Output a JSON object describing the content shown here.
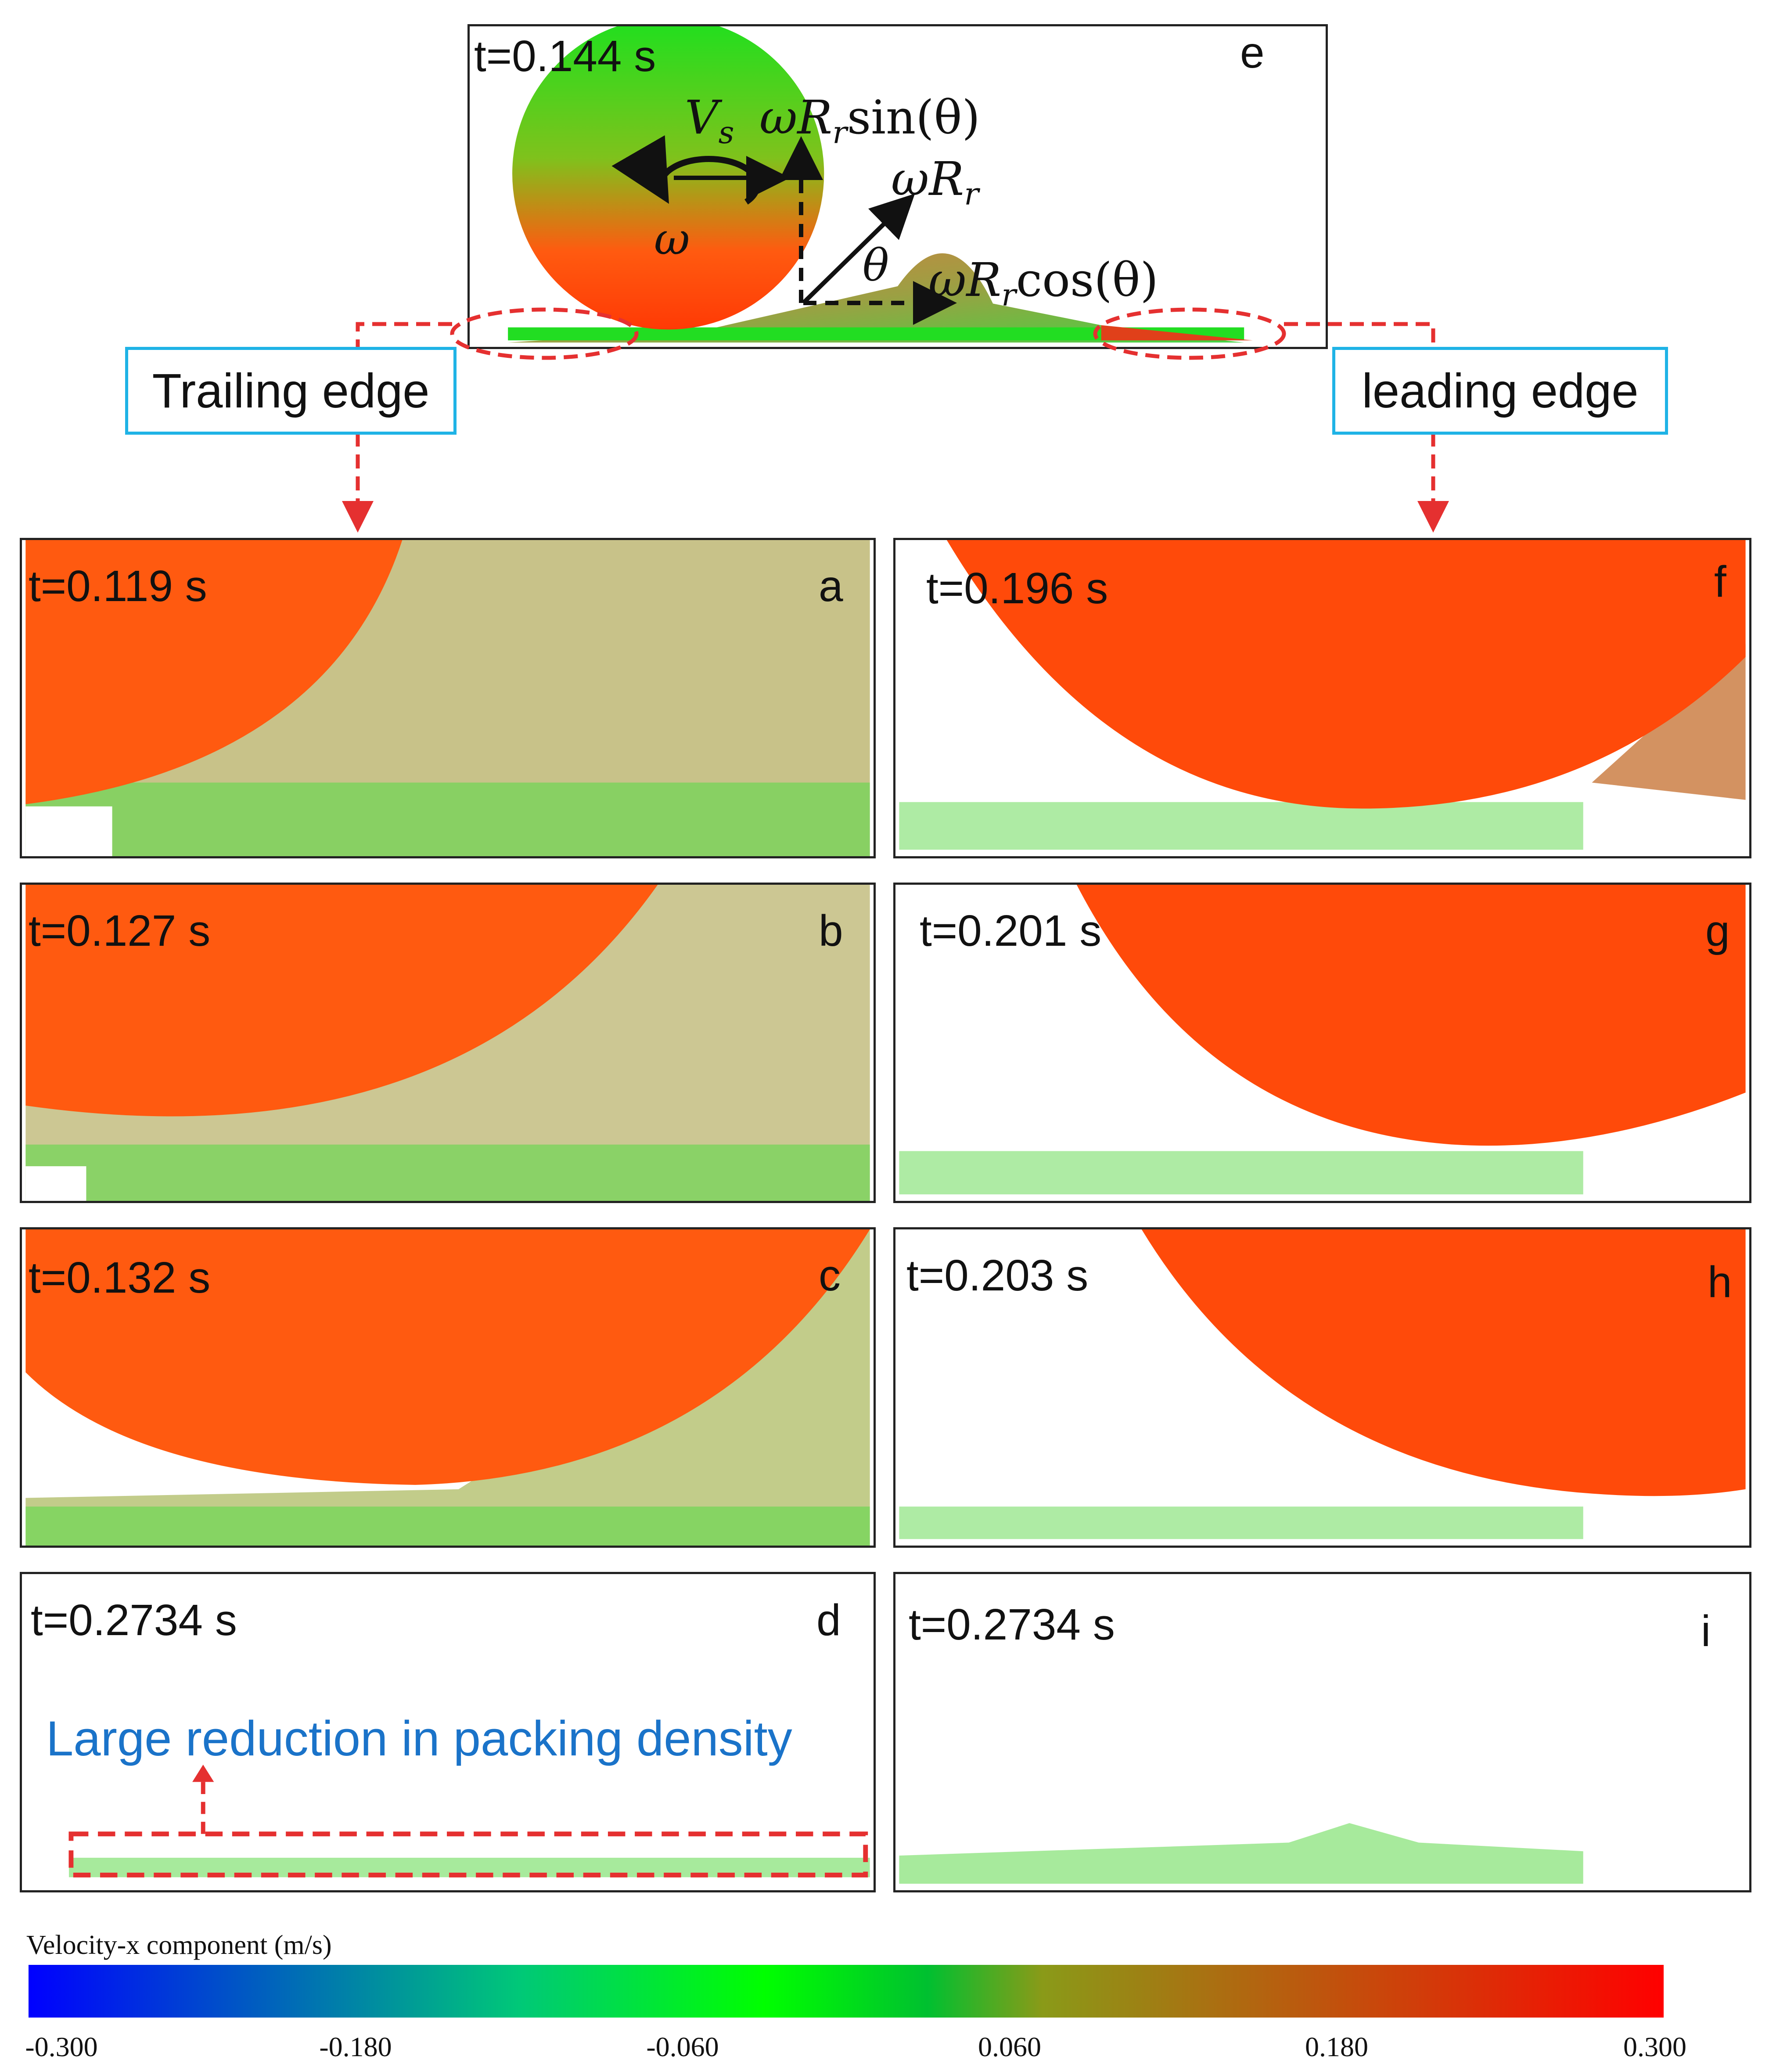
{
  "panel_e": {
    "time": "t=0.144 s",
    "letter": "e",
    "eq_vs": "V",
    "eq_vs_sub": "s",
    "eq_sin_prefix": "ωR",
    "eq_sin_sub": "r",
    "eq_sin_func": "sin(θ)",
    "eq_wr": "ωR",
    "eq_wr_sub": "r",
    "eq_theta": "θ",
    "eq_omega": "ω",
    "eq_cos_prefix": "ωR",
    "eq_cos_sub": "r",
    "eq_cos_func": "cos(θ)"
  },
  "labels": {
    "trailing": "Trailing edge",
    "leading": "leading edge"
  },
  "panels": [
    {
      "time": "t=0.119 s",
      "letter": "a"
    },
    {
      "time": "t=0.127 s",
      "letter": "b"
    },
    {
      "time": "t=0.132 s",
      "letter": "c"
    },
    {
      "time": "t=0.2734 s",
      "letter": "d"
    },
    {
      "time": "t=0.196 s",
      "letter": "f"
    },
    {
      "time": "t=0.201 s",
      "letter": "g"
    },
    {
      "time": "t=0.203 s",
      "letter": "h"
    },
    {
      "time": "t=0.2734 s",
      "letter": "i"
    }
  ],
  "annotation": {
    "text": "Large reduction in packing density",
    "color": "#1a73c9"
  },
  "colorbar": {
    "title": "Velocity-x component (m/s)",
    "ticks": [
      "-0.300",
      "-0.180",
      "-0.060",
      "0.060",
      "0.180",
      "0.300"
    ],
    "stops": [
      "#0000ff",
      "#00e63a",
      "#00cc2e",
      "#ff0000"
    ]
  },
  "colors": {
    "roller": "#ff5a10",
    "powder_green": "#22dd22",
    "powder_red": "#e0401a",
    "dashed": "#e53030",
    "label_border": "#1fb3e6"
  }
}
